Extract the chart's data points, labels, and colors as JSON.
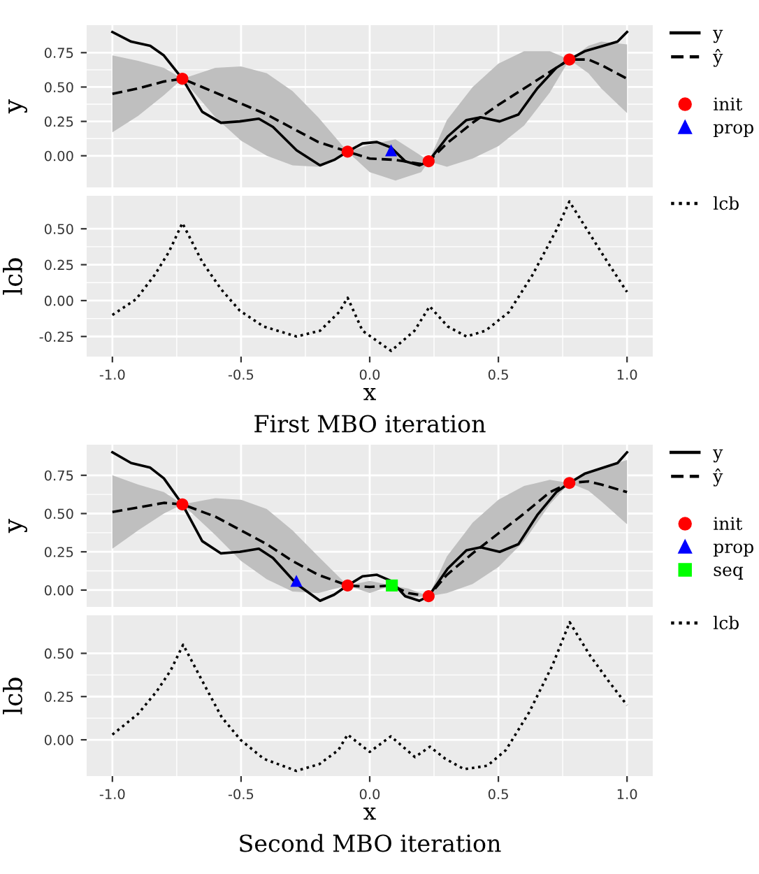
{
  "chart_data": [
    {
      "type": "line",
      "ylabel": "y",
      "xlim": [
        -1.1,
        1.1
      ],
      "ylim": [
        -0.23,
        0.95
      ],
      "tick_labels": "y",
      "grid": true,
      "legend": "right",
      "xticks": [
        -1,
        -0.5,
        0,
        0.5,
        1
      ],
      "yticks": [
        {
          "value": 0,
          "label": "0.00"
        },
        {
          "value": 0.25,
          "label": "0.25"
        },
        {
          "value": 0.5,
          "label": "0.50"
        },
        {
          "value": 0.75,
          "label": "0.75"
        }
      ],
      "series": [
        {
          "name": "y",
          "color": "#000000",
          "line_style": "solid",
          "x": [
            -1,
            -0.927,
            -0.853,
            -0.8,
            -0.728,
            -0.651,
            -0.578,
            -0.505,
            -0.431,
            -0.376,
            -0.284,
            -0.193,
            -0.138,
            -0.086,
            -0.028,
            0.028,
            0.083,
            0.138,
            0.193,
            0.229,
            0.303,
            0.376,
            0.431,
            0.505,
            0.578,
            0.651,
            0.725,
            0.776,
            0.835,
            0.908,
            0.963,
            1.0
          ],
          "values": [
            0.9,
            0.83,
            0.8,
            0.73,
            0.56,
            0.32,
            0.24,
            0.25,
            0.27,
            0.21,
            0.04,
            -0.07,
            -0.03,
            0.03,
            0.09,
            0.1,
            0.06,
            -0.04,
            -0.07,
            -0.04,
            0.14,
            0.26,
            0.28,
            0.25,
            0.3,
            0.49,
            0.64,
            0.7,
            0.76,
            0.8,
            0.83,
            0.9
          ]
        },
        {
          "name": "ŷ",
          "color": "#000000",
          "line_style": "dashed",
          "x": [
            -1,
            -0.9,
            -0.8,
            -0.728,
            -0.6,
            -0.5,
            -0.4,
            -0.3,
            -0.2,
            -0.086,
            0.0,
            0.1,
            0.2,
            0.229,
            0.3,
            0.4,
            0.5,
            0.6,
            0.7,
            0.776,
            0.85,
            0.9,
            1.0
          ],
          "values": [
            0.45,
            0.49,
            0.54,
            0.56,
            0.46,
            0.38,
            0.3,
            0.2,
            0.1,
            0.03,
            -0.02,
            -0.03,
            -0.06,
            -0.04,
            0.09,
            0.24,
            0.37,
            0.49,
            0.61,
            0.7,
            0.7,
            0.66,
            0.56
          ],
          "lower": [
            0.17,
            0.29,
            0.44,
            0.56,
            0.28,
            0.11,
            0.0,
            -0.07,
            -0.08,
            0.03,
            -0.12,
            -0.18,
            -0.12,
            -0.04,
            -0.08,
            -0.02,
            0.07,
            0.22,
            0.46,
            0.7,
            0.6,
            0.49,
            0.31
          ],
          "upper": [
            0.73,
            0.69,
            0.64,
            0.56,
            0.64,
            0.65,
            0.6,
            0.47,
            0.28,
            0.03,
            0.08,
            0.12,
            0.0,
            -0.04,
            0.26,
            0.5,
            0.67,
            0.76,
            0.76,
            0.7,
            0.8,
            0.83,
            0.81
          ]
        },
        {
          "name": "init",
          "type": "scatter",
          "color": "#ff0000",
          "marker": "circle",
          "x": [
            -0.728,
            -0.086,
            0.229,
            0.776
          ],
          "values": [
            0.56,
            0.03,
            -0.04,
            0.7
          ]
        },
        {
          "name": "prop",
          "type": "scatter",
          "color": "#0000ff",
          "marker": "triangle",
          "x": [
            0.083
          ],
          "values": [
            0.04
          ]
        }
      ]
    },
    {
      "type": "line",
      "ylabel": "lcb",
      "xlabel": "x",
      "xlim": [
        -1.1,
        1.1
      ],
      "ylim": [
        -0.39,
        0.73
      ],
      "grid": true,
      "legend": "right",
      "annotations": [
        "First MBO iteration"
      ],
      "xticks": [
        {
          "value": -1,
          "label": "-1.0"
        },
        {
          "value": -0.5,
          "label": "-0.5"
        },
        {
          "value": 0,
          "label": "0.0"
        },
        {
          "value": 0.5,
          "label": "0.5"
        },
        {
          "value": 1,
          "label": "1.0"
        }
      ],
      "yticks": [
        {
          "value": -0.25,
          "label": "-0.25"
        },
        {
          "value": 0,
          "label": "0.00"
        },
        {
          "value": 0.25,
          "label": "0.25"
        },
        {
          "value": 0.5,
          "label": "0.50"
        }
      ],
      "series": [
        {
          "name": "lcb",
          "color": "#000000",
          "line_style": "dotted",
          "x": [
            -1,
            -0.908,
            -0.835,
            -0.78,
            -0.728,
            -0.651,
            -0.578,
            -0.505,
            -0.413,
            -0.284,
            -0.193,
            -0.119,
            -0.086,
            -0.028,
            0.083,
            0.174,
            0.233,
            0.303,
            0.376,
            0.45,
            0.541,
            0.633,
            0.725,
            0.776,
            0.853,
            0.927,
            1.0
          ],
          "values": [
            -0.1,
            0.01,
            0.18,
            0.34,
            0.54,
            0.27,
            0.08,
            -0.07,
            -0.18,
            -0.25,
            -0.21,
            -0.08,
            0.02,
            -0.21,
            -0.35,
            -0.21,
            -0.04,
            -0.18,
            -0.25,
            -0.21,
            -0.08,
            0.18,
            0.49,
            0.69,
            0.47,
            0.26,
            0.06
          ]
        }
      ]
    },
    {
      "type": "line",
      "ylabel": "y",
      "xlim": [
        -1.1,
        1.1
      ],
      "ylim": [
        -0.11,
        0.95
      ],
      "tick_labels": "y",
      "grid": true,
      "legend": "right",
      "xticks": [
        -1,
        -0.5,
        0,
        0.5,
        1
      ],
      "yticks": [
        {
          "value": 0,
          "label": "0.00"
        },
        {
          "value": 0.25,
          "label": "0.25"
        },
        {
          "value": 0.5,
          "label": "0.50"
        },
        {
          "value": 0.75,
          "label": "0.75"
        }
      ],
      "series": [
        {
          "name": "y",
          "color": "#000000",
          "line_style": "solid",
          "x": [
            -1,
            -0.927,
            -0.853,
            -0.8,
            -0.728,
            -0.651,
            -0.578,
            -0.505,
            -0.431,
            -0.376,
            -0.284,
            -0.193,
            -0.138,
            -0.086,
            -0.028,
            0.028,
            0.083,
            0.138,
            0.193,
            0.229,
            0.303,
            0.376,
            0.431,
            0.505,
            0.578,
            0.651,
            0.725,
            0.776,
            0.835,
            0.908,
            0.963,
            1.0
          ],
          "values": [
            0.9,
            0.83,
            0.8,
            0.73,
            0.56,
            0.32,
            0.24,
            0.25,
            0.27,
            0.21,
            0.04,
            -0.07,
            -0.03,
            0.03,
            0.09,
            0.1,
            0.06,
            -0.04,
            -0.07,
            -0.04,
            0.14,
            0.26,
            0.28,
            0.25,
            0.3,
            0.49,
            0.64,
            0.7,
            0.76,
            0.8,
            0.83,
            0.9
          ]
        },
        {
          "name": "ŷ",
          "color": "#000000",
          "line_style": "dashed",
          "x": [
            -1,
            -0.9,
            -0.8,
            -0.728,
            -0.6,
            -0.5,
            -0.4,
            -0.3,
            -0.2,
            -0.086,
            0.0,
            0.086,
            0.15,
            0.229,
            0.3,
            0.4,
            0.5,
            0.6,
            0.7,
            0.776,
            0.85,
            0.9,
            1.0
          ],
          "values": [
            0.51,
            0.54,
            0.57,
            0.56,
            0.48,
            0.39,
            0.3,
            0.19,
            0.1,
            0.03,
            0.02,
            0.03,
            -0.02,
            -0.04,
            0.1,
            0.24,
            0.37,
            0.5,
            0.64,
            0.7,
            0.71,
            0.69,
            0.64
          ],
          "lower": [
            0.27,
            0.39,
            0.5,
            0.56,
            0.36,
            0.19,
            0.07,
            -0.01,
            -0.02,
            0.03,
            -0.02,
            0.03,
            -0.05,
            -0.04,
            -0.02,
            0.04,
            0.15,
            0.32,
            0.56,
            0.7,
            0.65,
            0.58,
            0.43
          ],
          "upper": [
            0.75,
            0.69,
            0.64,
            0.56,
            0.6,
            0.59,
            0.53,
            0.39,
            0.22,
            0.03,
            0.06,
            0.03,
            0.01,
            -0.04,
            0.22,
            0.44,
            0.59,
            0.68,
            0.72,
            0.7,
            0.77,
            0.8,
            0.85
          ]
        },
        {
          "name": "init",
          "type": "scatter",
          "color": "#ff0000",
          "marker": "circle",
          "x": [
            -0.728,
            -0.086,
            0.229,
            0.776
          ],
          "values": [
            0.56,
            0.03,
            -0.04,
            0.7
          ]
        },
        {
          "name": "prop",
          "type": "scatter",
          "color": "#0000ff",
          "marker": "triangle",
          "x": [
            -0.285
          ],
          "values": [
            0.06
          ]
        },
        {
          "name": "seq",
          "type": "scatter",
          "color": "#00ff00",
          "marker": "square",
          "x": [
            0.086
          ],
          "values": [
            0.03
          ]
        }
      ]
    },
    {
      "type": "line",
      "ylabel": "lcb",
      "xlabel": "x",
      "xlim": [
        -1.1,
        1.1
      ],
      "ylim": [
        -0.21,
        0.72
      ],
      "grid": true,
      "legend": "right",
      "annotations": [
        "Second MBO iteration"
      ],
      "xticks": [
        {
          "value": -1,
          "label": "-1.0"
        },
        {
          "value": -0.5,
          "label": "-0.5"
        },
        {
          "value": 0,
          "label": "0.0"
        },
        {
          "value": 0.5,
          "label": "0.5"
        },
        {
          "value": 1,
          "label": "1.0"
        }
      ],
      "yticks": [
        {
          "value": 0,
          "label": "0.00"
        },
        {
          "value": 0.25,
          "label": "0.25"
        },
        {
          "value": 0.5,
          "label": "0.50"
        }
      ],
      "series": [
        {
          "name": "lcb",
          "color": "#000000",
          "line_style": "dotted",
          "x": [
            -1,
            -0.9,
            -0.828,
            -0.774,
            -0.725,
            -0.647,
            -0.575,
            -0.502,
            -0.412,
            -0.285,
            -0.195,
            -0.122,
            -0.086,
            0.0,
            0.082,
            0.176,
            0.234,
            0.294,
            0.367,
            0.457,
            0.529,
            0.62,
            0.71,
            0.777,
            0.855,
            0.928,
            1.0
          ],
          "values": [
            0.03,
            0.15,
            0.28,
            0.4,
            0.55,
            0.33,
            0.13,
            0.0,
            -0.11,
            -0.18,
            -0.14,
            -0.06,
            0.03,
            -0.07,
            0.02,
            -0.1,
            -0.04,
            -0.11,
            -0.17,
            -0.15,
            -0.06,
            0.16,
            0.43,
            0.68,
            0.49,
            0.34,
            0.2
          ]
        }
      ]
    }
  ]
}
